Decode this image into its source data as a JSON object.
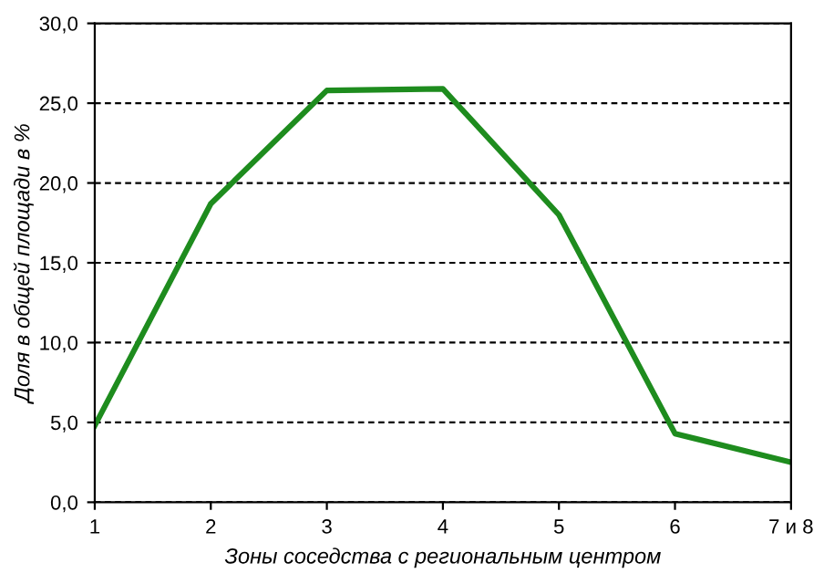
{
  "chart_data": {
    "type": "line",
    "xlabel": "Зоны соседства с региональным центром",
    "ylabel": "Доля в общей площади в %",
    "categories": [
      "1",
      "2",
      "3",
      "4",
      "5",
      "6",
      "7 и 8"
    ],
    "series": [
      {
        "color": "#1e8c1e",
        "values": [
          4.8,
          18.7,
          25.8,
          25.9,
          18.0,
          4.3,
          2.5
        ]
      }
    ],
    "ylim": [
      0,
      30
    ],
    "yticks": [
      {
        "value": 0,
        "label": "0,0"
      },
      {
        "value": 5,
        "label": "5,0"
      },
      {
        "value": 10,
        "label": "10,0"
      },
      {
        "value": 15,
        "label": "15,0"
      },
      {
        "value": 20,
        "label": "20,0"
      },
      {
        "value": 25,
        "label": "25,0"
      },
      {
        "value": 30,
        "label": "30,0"
      }
    ],
    "grid": "y",
    "marker": "none",
    "line_style": "solid"
  }
}
